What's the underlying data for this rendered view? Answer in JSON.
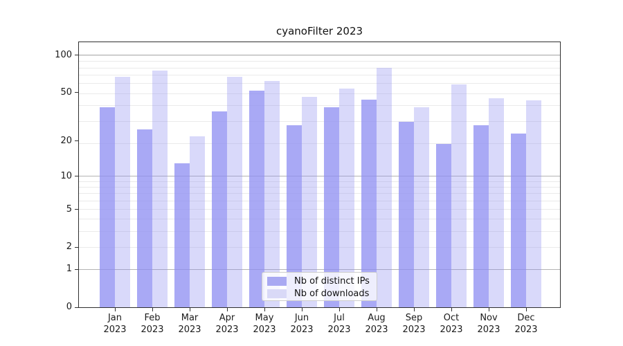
{
  "title": "cyanoFilter 2023",
  "chart_data": {
    "type": "bar",
    "title": "cyanoFilter 2023",
    "categories": [
      "Jan 2023",
      "Feb 2023",
      "Mar 2023",
      "Apr 2023",
      "May 2023",
      "Jun 2023",
      "Jul 2023",
      "Aug 2023",
      "Sep 2023",
      "Oct 2023",
      "Nov 2023",
      "Dec 2023"
    ],
    "months": [
      "Jan",
      "Feb",
      "Mar",
      "Apr",
      "May",
      "Jun",
      "Jul",
      "Aug",
      "Sep",
      "Oct",
      "Nov",
      "Dec"
    ],
    "year": "2023",
    "series": [
      {
        "name": "Nb of distinct IPs",
        "color": "rgba(140,140,241,0.75)",
        "swatch_color": "#a9a9f2",
        "values": [
          38,
          25,
          13,
          35,
          52,
          27,
          38,
          44,
          29,
          19,
          27,
          23
        ]
      },
      {
        "name": "Nb of downloads",
        "color": "rgba(140,140,241,0.33)",
        "swatch_color": "#d9d9f7",
        "values": [
          67,
          75,
          22,
          67,
          62,
          46,
          54,
          79,
          38,
          58,
          45,
          43
        ]
      }
    ],
    "yscale": "log10(1+y)",
    "yticks": [
      100,
      50,
      20,
      10,
      5,
      2,
      1,
      0
    ],
    "ylim": [
      0,
      127
    ],
    "xlabel": "",
    "ylabel": "",
    "grid": {
      "major_at": [
        1,
        10,
        100
      ],
      "minor_at": [
        2,
        3,
        4,
        5,
        6,
        7,
        8,
        9,
        19,
        29,
        39,
        49,
        59,
        69,
        79,
        89,
        99
      ],
      "major_color": "#b3b3b3",
      "minor_color": "#eaeaea"
    },
    "legend_position": "lower center"
  },
  "axes": {
    "spine_color": "#2e2e2e",
    "tick_color": "#2e2e2e"
  }
}
